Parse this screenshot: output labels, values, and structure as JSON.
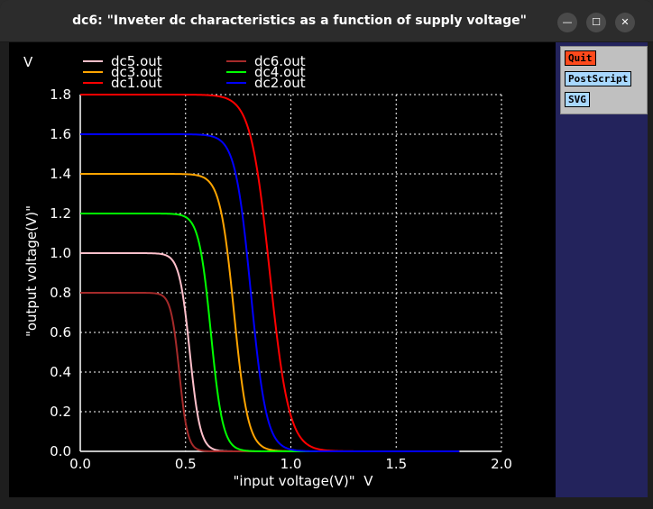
{
  "window": {
    "title": "dc6: \"Inveter dc characteristics as a function of supply voltage\"",
    "minimize_glyph": "—",
    "maximize_glyph": "☐",
    "close_glyph": "✕"
  },
  "panel": {
    "quit_label": "Quit",
    "postscript_label": "PostScript",
    "svg_label": "SVG",
    "quit_color": "#ff4a1c",
    "button_color": "#a8d8ff"
  },
  "chart_data": {
    "type": "line",
    "xlabel": "\"input voltage(V)\"  V",
    "ylabel": "\"output voltage(V)\"",
    "y_unit": "V",
    "xlim": [
      0.0,
      2.0
    ],
    "ylim": [
      0.0,
      1.8
    ],
    "x_ticks": [
      "0.0",
      "0.5",
      "1.0",
      "1.5",
      "2.0"
    ],
    "y_ticks": [
      "0.0",
      "0.2",
      "0.4",
      "0.6",
      "0.8",
      "1.0",
      "1.2",
      "1.4",
      "1.6",
      "1.8"
    ],
    "grid": true,
    "legend_position": "top",
    "series": [
      {
        "name": "dc5.out",
        "color": "#ffc0cb",
        "vdd": 1.0,
        "vm": 0.52,
        "k": 40
      },
      {
        "name": "dc6.out",
        "color": "#a52a2a",
        "vdd": 0.8,
        "vm": 0.47,
        "k": 50
      },
      {
        "name": "dc3.out",
        "color": "#ffa500",
        "vdd": 1.4,
        "vm": 0.73,
        "k": 30
      },
      {
        "name": "dc4.out",
        "color": "#00ff00",
        "vdd": 1.2,
        "vm": 0.62,
        "k": 35
      },
      {
        "name": "dc1.out",
        "color": "#ff0000",
        "vdd": 1.8,
        "vm": 0.9,
        "k": 22
      },
      {
        "name": "dc2.out",
        "color": "#0000ff",
        "vdd": 1.6,
        "vm": 0.81,
        "k": 27
      }
    ]
  }
}
